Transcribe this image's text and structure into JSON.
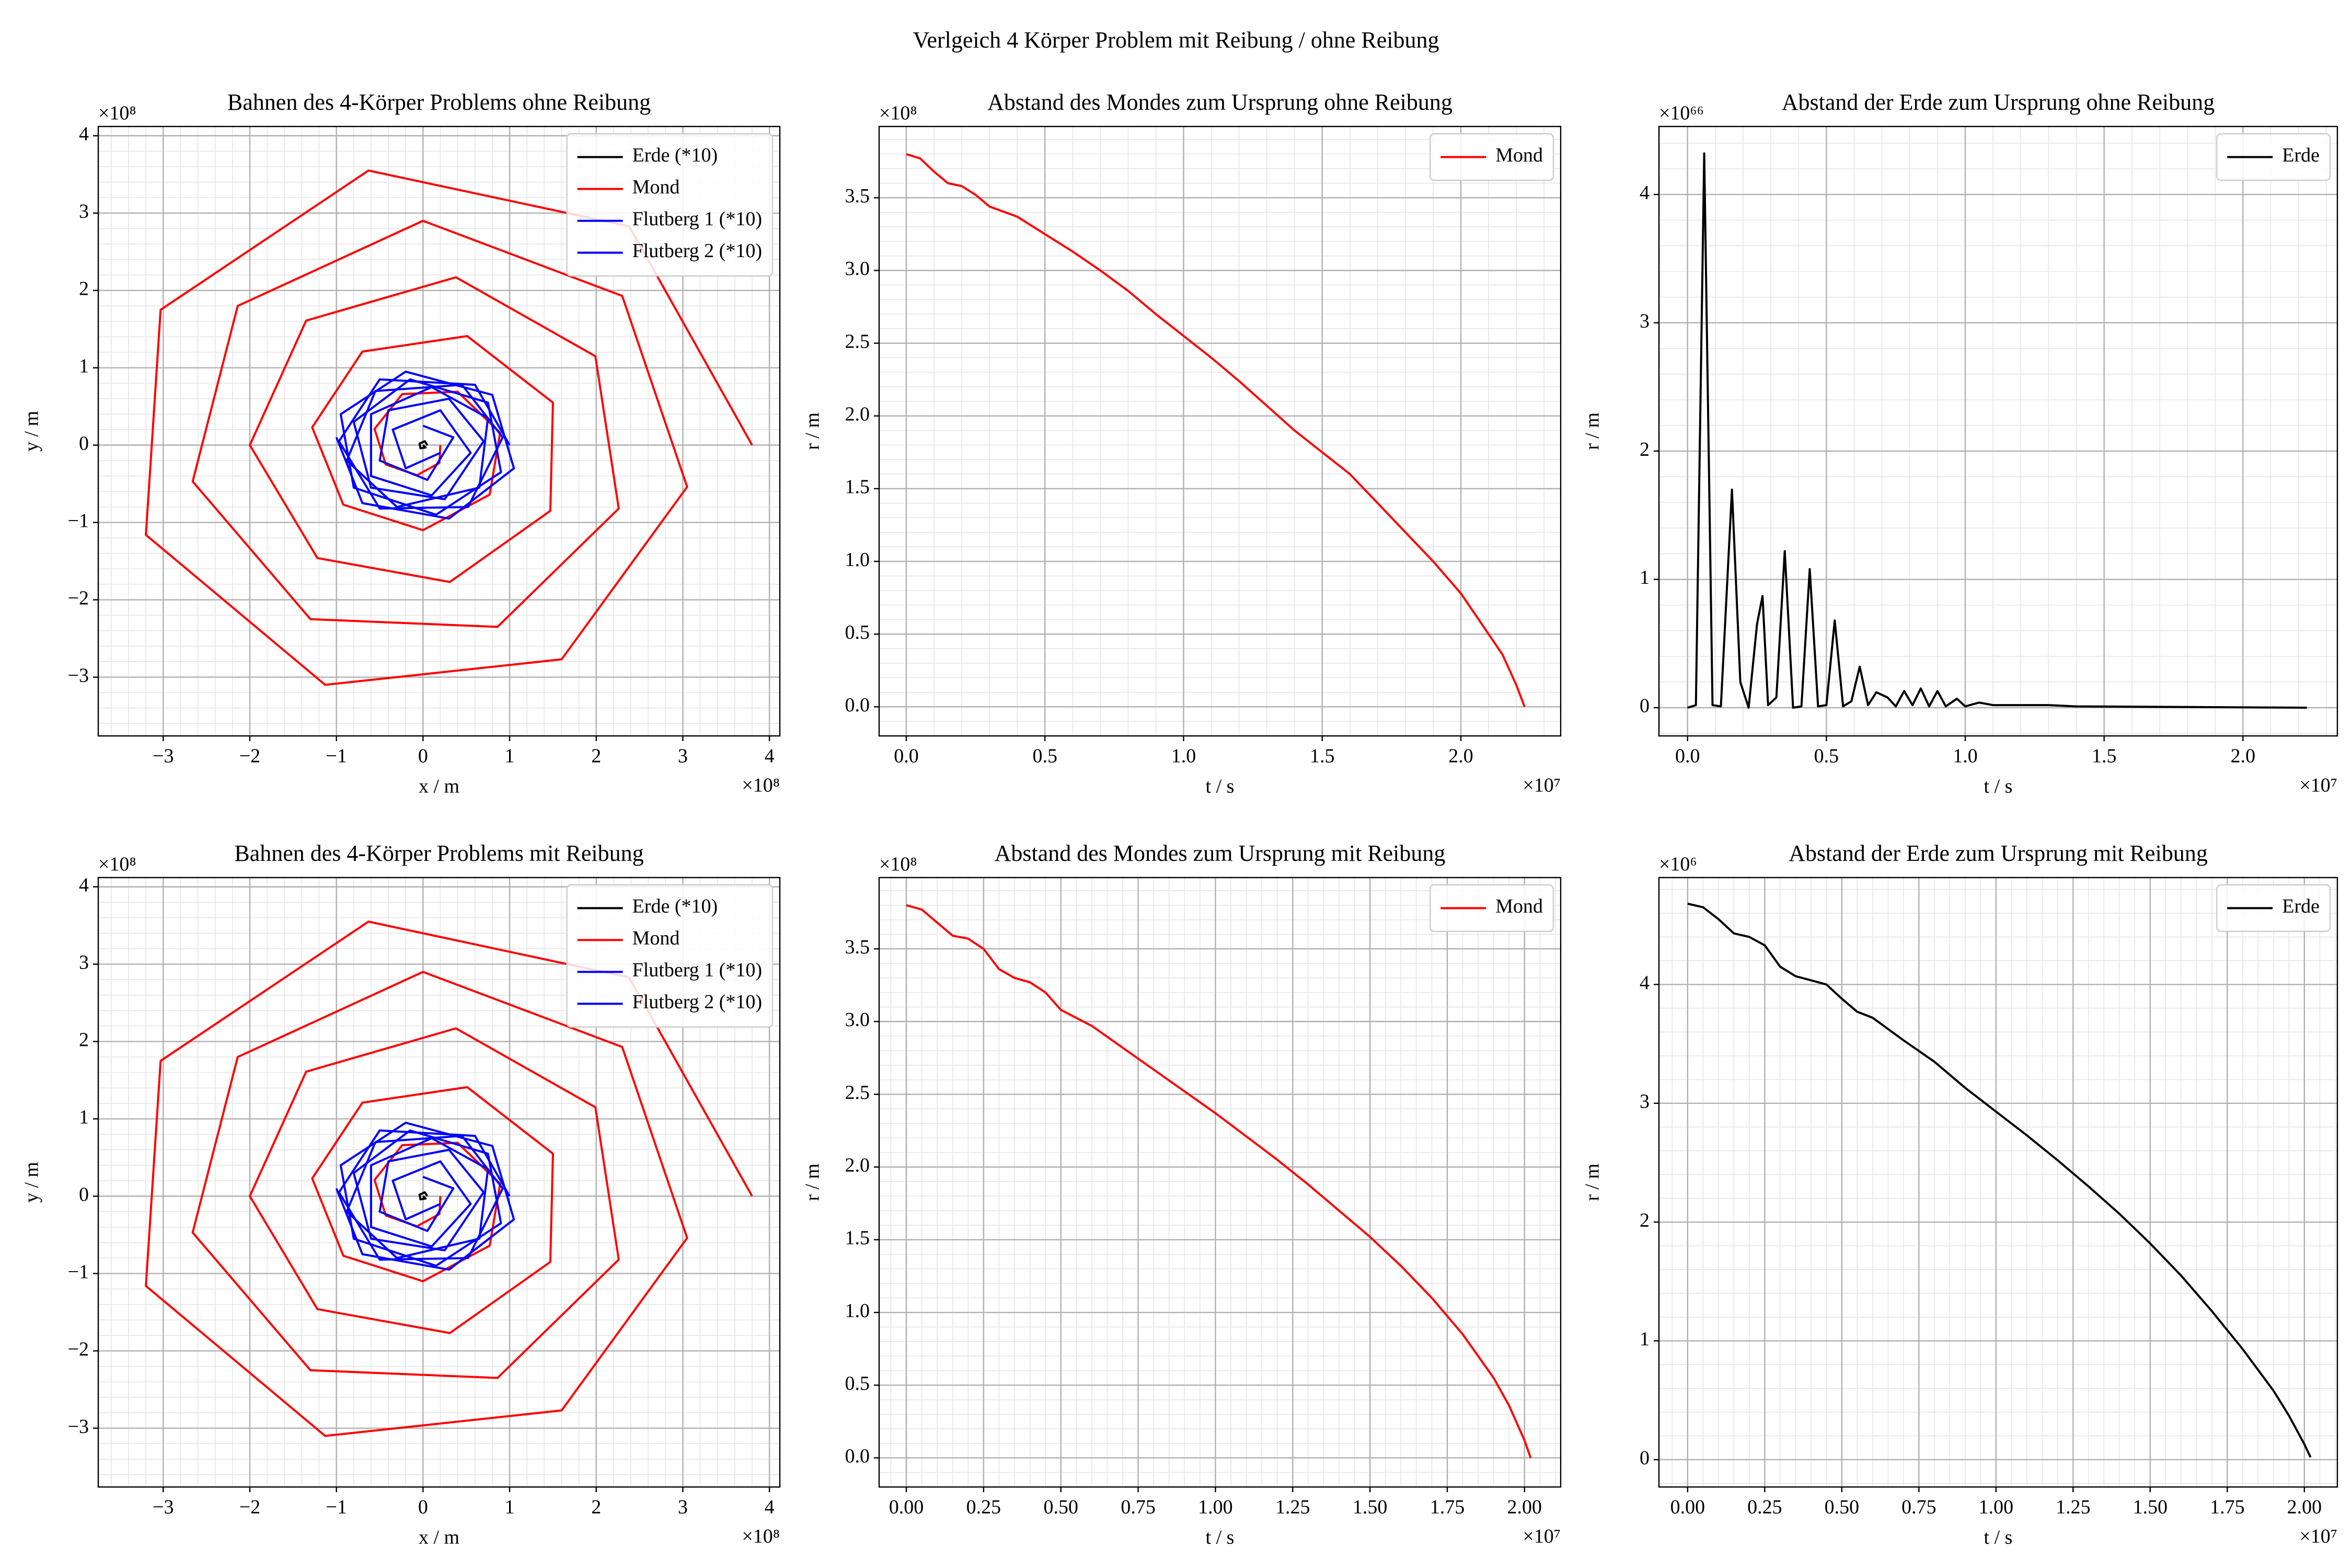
{
  "title": "Verlgeich 4 Körper Problem mit Reibung / ohne Reibung",
  "chart_data": [
    {
      "type": "line",
      "title": "Bahnen des 4-Körper Problems ohne Reibung",
      "xlabel": "x / m",
      "ylabel": "y / m",
      "x_offset": "×10⁸",
      "y_offset": "×10⁸",
      "xlim": [
        -3.75,
        4.12
      ],
      "ylim": [
        -3.76,
        4.12
      ],
      "xticks": [
        {
          "value": -3,
          "label": "−3"
        },
        {
          "value": -2,
          "label": "−2"
        },
        {
          "value": -1,
          "label": "−1"
        },
        0,
        1,
        2,
        3,
        4
      ],
      "yticks": [
        {
          "value": -3,
          "label": "−3"
        },
        {
          "value": -2,
          "label": "−2"
        },
        {
          "value": -1,
          "label": "−1"
        },
        0,
        1,
        2,
        3,
        4
      ],
      "grid": true,
      "minor_divisions": 5,
      "legend": "upper right",
      "series": [
        {
          "name": "Erde (*10)",
          "color": "#000000",
          "x": [
            0.05,
            0.02,
            -0.04,
            -0.03,
            0.03,
            0
          ],
          "values": [
            0,
            0.05,
            0.02,
            -0.04,
            -0.03,
            0
          ]
        },
        {
          "name": "Mond",
          "color": "#ff0000",
          "x": [
            3.8,
            2.38,
            -0.63,
            -3.03,
            -3.2,
            -1.13,
            1.6,
            3.05,
            2.3,
            0,
            -2.14,
            -2.66,
            -1.3,
            0.86,
            2.26,
            1.99,
            0.38,
            -1.35,
            -2,
            -1.22,
            0.31,
            1.47,
            1.5,
            0.51,
            -0.7,
            -1.28,
            -0.92,
            0,
            0.77,
            0.89,
            0.4,
            -0.24,
            -0.56,
            -0.43,
            -0.07,
            0.19,
            0.2
          ],
          "values": [
            0,
            2.83,
            3.55,
            1.75,
            -1.16,
            -3.1,
            -2.77,
            -0.54,
            1.93,
            2.9,
            1.8,
            -0.47,
            -2.25,
            -2.35,
            -0.82,
            1.15,
            2.17,
            1.61,
            0,
            -1.46,
            -1.77,
            -0.85,
            0.55,
            1.41,
            1.21,
            0.23,
            -0.77,
            -1.1,
            -0.64,
            0.16,
            0.69,
            0.66,
            0.21,
            -0.25,
            -0.39,
            -0.23,
            0
          ]
        },
        {
          "name": "Flutberg 1 (*10)",
          "color": "#0000ff",
          "x": [
            1.0,
            0.6,
            -0.5,
            -0.97,
            -0.5,
            0.52,
            0.92,
            0.45,
            -0.55,
            -0.88,
            -0.3,
            0.65,
            0.75,
            0.1,
            -0.6,
            -0.6,
            0.1,
            0.55,
            0.2,
            -0.35,
            -0.2,
            0.2
          ],
          "values": [
            0,
            0.78,
            0.85,
            0.05,
            -0.82,
            -0.8,
            0.1,
            0.78,
            0.7,
            -0.2,
            -0.8,
            -0.55,
            0.35,
            0.75,
            0.4,
            -0.4,
            -0.65,
            -0.1,
            0.45,
            0.2,
            -0.3,
            -0.1
          ]
        },
        {
          "name": "Flutberg 2 (*10)",
          "color": "#0000ff",
          "x": [
            -1.0,
            -0.7,
            0.3,
            1.05,
            0.8,
            -0.2,
            -0.95,
            -0.8,
            0.15,
            0.9,
            0.75,
            -0.15,
            -0.8,
            -0.6,
            0.25,
            0.7,
            0.3,
            -0.4,
            -0.5,
            0.05,
            0.35,
            0
          ],
          "values": [
            0.1,
            -0.75,
            -0.95,
            -0.3,
            0.65,
            0.95,
            0.4,
            -0.55,
            -0.9,
            -0.35,
            0.55,
            0.85,
            0.3,
            -0.55,
            -0.7,
            0.05,
            0.6,
            0.45,
            -0.2,
            -0.45,
            0.1,
            0.25
          ]
        }
      ]
    },
    {
      "type": "line",
      "title": "Abstand des Mondes zum Ursprung ohne Reibung",
      "xlabel": "t / s",
      "ylabel": "r / m",
      "x_offset": "×10⁷",
      "y_offset": "×10⁸",
      "xlim": [
        -0.098,
        2.36
      ],
      "ylim": [
        -0.2,
        3.99
      ],
      "xticks": [
        {
          "value": 0,
          "label": "0.0"
        },
        0.5,
        {
          "value": 1,
          "label": "1.0"
        },
        1.5,
        {
          "value": 2,
          "label": "2.0"
        }
      ],
      "yticks": [
        {
          "value": 0,
          "label": "0.0"
        },
        0.5,
        {
          "value": 1,
          "label": "1.0"
        },
        1.5,
        {
          "value": 2,
          "label": "2.0"
        },
        2.5,
        {
          "value": 3,
          "label": "3.0"
        },
        3.5
      ],
      "grid": true,
      "minor_divisions": 5,
      "legend": "upper right",
      "series": [
        {
          "name": "Mond",
          "color": "#ff0000",
          "x": [
            0,
            0.05,
            0.1,
            0.15,
            0.2,
            0.25,
            0.3,
            0.4,
            0.5,
            0.6,
            0.7,
            0.8,
            0.9,
            1.0,
            1.1,
            1.2,
            1.3,
            1.4,
            1.5,
            1.6,
            1.7,
            1.8,
            1.9,
            2.0,
            2.1,
            2.15,
            2.2,
            2.23
          ],
          "values": [
            3.8,
            3.77,
            3.68,
            3.6,
            3.58,
            3.52,
            3.44,
            3.37,
            3.25,
            3.13,
            3.0,
            2.86,
            2.7,
            2.55,
            2.4,
            2.24,
            2.07,
            1.9,
            1.75,
            1.6,
            1.4,
            1.2,
            1.0,
            0.78,
            0.5,
            0.36,
            0.15,
            0
          ]
        }
      ]
    },
    {
      "type": "line",
      "title": "Abstand der Erde zum Ursprung ohne Reibung",
      "xlabel": "t / s",
      "ylabel": "r / m",
      "x_offset": "×10⁷",
      "y_offset": "×10⁶⁶",
      "xlim": [
        -0.103,
        2.34
      ],
      "ylim": [
        -0.22,
        4.53
      ],
      "xticks": [
        {
          "value": 0,
          "label": "0.0"
        },
        0.5,
        {
          "value": 1,
          "label": "1.0"
        },
        1.5,
        {
          "value": 2,
          "label": "2.0"
        }
      ],
      "yticks": [
        0,
        1,
        2,
        3,
        4
      ],
      "grid": true,
      "minor_divisions": 5,
      "legend": "upper right",
      "series": [
        {
          "name": "Erde",
          "color": "#000000",
          "x": [
            0,
            0.03,
            0.06,
            0.09,
            0.12,
            0.16,
            0.19,
            0.22,
            0.25,
            0.27,
            0.29,
            0.32,
            0.35,
            0.38,
            0.41,
            0.44,
            0.47,
            0.5,
            0.53,
            0.56,
            0.59,
            0.62,
            0.65,
            0.68,
            0.72,
            0.75,
            0.78,
            0.81,
            0.84,
            0.87,
            0.9,
            0.93,
            0.97,
            1.0,
            1.05,
            1.1,
            1.2,
            1.3,
            1.4,
            2.23
          ],
          "values": [
            0,
            0.02,
            4.32,
            0.02,
            0.01,
            1.7,
            0.2,
            0,
            0.65,
            0.87,
            0.02,
            0.08,
            1.22,
            0,
            0.01,
            1.08,
            0.01,
            0.02,
            0.68,
            0.01,
            0.05,
            0.32,
            0.02,
            0.12,
            0.08,
            0.01,
            0.13,
            0.02,
            0.15,
            0.01,
            0.13,
            0.01,
            0.07,
            0.01,
            0.04,
            0.02,
            0.02,
            0.02,
            0.01,
            0
          ]
        }
      ]
    },
    {
      "type": "line",
      "title": "Bahnen des 4-Körper Problems mit Reibung",
      "xlabel": "x / m",
      "ylabel": "y / m",
      "x_offset": "×10⁸",
      "y_offset": "×10⁸",
      "xlim": [
        -3.75,
        4.12
      ],
      "ylim": [
        -3.76,
        4.12
      ],
      "xticks": [
        {
          "value": -3,
          "label": "−3"
        },
        {
          "value": -2,
          "label": "−2"
        },
        {
          "value": -1,
          "label": "−1"
        },
        0,
        1,
        2,
        3,
        4
      ],
      "yticks": [
        {
          "value": -3,
          "label": "−3"
        },
        {
          "value": -2,
          "label": "−2"
        },
        {
          "value": -1,
          "label": "−1"
        },
        0,
        1,
        2,
        3,
        4
      ],
      "grid": true,
      "minor_divisions": 5,
      "legend": "upper right",
      "series": [
        {
          "name": "Erde (*10)",
          "color": "#000000",
          "x": [
            0.05,
            0.02,
            -0.04,
            -0.03,
            0.03,
            0
          ],
          "values": [
            0,
            0.05,
            0.02,
            -0.04,
            -0.03,
            0
          ]
        },
        {
          "name": "Mond",
          "color": "#ff0000",
          "x": [
            3.8,
            2.38,
            -0.63,
            -3.03,
            -3.2,
            -1.13,
            1.6,
            3.05,
            2.3,
            0,
            -2.14,
            -2.66,
            -1.3,
            0.86,
            2.26,
            1.99,
            0.38,
            -1.35,
            -2,
            -1.22,
            0.31,
            1.47,
            1.5,
            0.51,
            -0.7,
            -1.28,
            -0.92,
            0,
            0.77,
            0.89,
            0.4,
            -0.24,
            -0.56,
            -0.43,
            -0.07,
            0.19,
            0.2
          ],
          "values": [
            0,
            2.83,
            3.55,
            1.75,
            -1.16,
            -3.1,
            -2.77,
            -0.54,
            1.93,
            2.9,
            1.8,
            -0.47,
            -2.25,
            -2.35,
            -0.82,
            1.15,
            2.17,
            1.61,
            0,
            -1.46,
            -1.77,
            -0.85,
            0.55,
            1.41,
            1.21,
            0.23,
            -0.77,
            -1.1,
            -0.64,
            0.16,
            0.69,
            0.66,
            0.21,
            -0.25,
            -0.39,
            -0.23,
            0
          ]
        },
        {
          "name": "Flutberg 1 (*10)",
          "color": "#0000ff",
          "x": [
            1.0,
            0.6,
            -0.5,
            -0.97,
            -0.5,
            0.52,
            0.92,
            0.45,
            -0.55,
            -0.88,
            -0.3,
            0.65,
            0.75,
            0.1,
            -0.6,
            -0.6,
            0.1,
            0.55,
            0.2,
            -0.35,
            -0.2,
            0.2
          ],
          "values": [
            0,
            0.78,
            0.85,
            0.05,
            -0.82,
            -0.8,
            0.1,
            0.78,
            0.7,
            -0.2,
            -0.8,
            -0.55,
            0.35,
            0.75,
            0.4,
            -0.4,
            -0.65,
            -0.1,
            0.45,
            0.2,
            -0.3,
            -0.1
          ]
        },
        {
          "name": "Flutberg 2 (*10)",
          "color": "#0000ff",
          "x": [
            -1.0,
            -0.7,
            0.3,
            1.05,
            0.8,
            -0.2,
            -0.95,
            -0.8,
            0.15,
            0.9,
            0.75,
            -0.15,
            -0.8,
            -0.6,
            0.25,
            0.7,
            0.3,
            -0.4,
            -0.5,
            0.05,
            0.35,
            0
          ],
          "values": [
            0.1,
            -0.75,
            -0.95,
            -0.3,
            0.65,
            0.95,
            0.4,
            -0.55,
            -0.9,
            -0.35,
            0.55,
            0.85,
            0.3,
            -0.55,
            -0.7,
            0.05,
            0.6,
            0.45,
            -0.2,
            -0.45,
            0.1,
            0.25
          ]
        }
      ]
    },
    {
      "type": "line",
      "title": "Abstand des Mondes zum Ursprung mit Reibung",
      "xlabel": "t / s",
      "ylabel": "r / m",
      "x_offset": "×10⁷",
      "y_offset": "×10⁸",
      "xlim": [
        -0.088,
        2.117
      ],
      "ylim": [
        -0.2,
        3.99
      ],
      "xticks": [
        {
          "value": 0,
          "label": "0.00"
        },
        0.25,
        {
          "value": 0.5,
          "label": "0.50"
        },
        0.75,
        {
          "value": 1,
          "label": "1.00"
        },
        1.25,
        {
          "value": 1.5,
          "label": "1.50"
        },
        1.75,
        {
          "value": 2,
          "label": "2.00"
        }
      ],
      "yticks": [
        {
          "value": 0,
          "label": "0.0"
        },
        0.5,
        {
          "value": 1,
          "label": "1.0"
        },
        1.5,
        {
          "value": 2,
          "label": "2.0"
        },
        2.5,
        {
          "value": 3,
          "label": "3.0"
        },
        3.5
      ],
      "grid": true,
      "minor_divisions": 5,
      "legend": "upper right",
      "series": [
        {
          "name": "Mond",
          "color": "#ff0000",
          "x": [
            0,
            0.05,
            0.1,
            0.15,
            0.2,
            0.25,
            0.3,
            0.35,
            0.4,
            0.45,
            0.5,
            0.6,
            0.7,
            0.8,
            0.9,
            1.0,
            1.1,
            1.2,
            1.3,
            1.4,
            1.5,
            1.6,
            1.7,
            1.8,
            1.9,
            1.95,
            2.0,
            2.02
          ],
          "values": [
            3.8,
            3.77,
            3.68,
            3.59,
            3.57,
            3.5,
            3.36,
            3.3,
            3.27,
            3.2,
            3.08,
            2.97,
            2.82,
            2.67,
            2.52,
            2.37,
            2.21,
            2.05,
            1.88,
            1.7,
            1.52,
            1.32,
            1.1,
            0.85,
            0.55,
            0.36,
            0.12,
            0
          ]
        }
      ]
    },
    {
      "type": "line",
      "title": "Abstand der Erde zum Ursprung mit Reibung",
      "xlabel": "t / s",
      "ylabel": "r / m",
      "x_offset": "×10⁷",
      "y_offset": "×10⁶",
      "xlim": [
        -0.093,
        2.107
      ],
      "ylim": [
        -0.23,
        4.9
      ],
      "xticks": [
        {
          "value": 0,
          "label": "0.00"
        },
        0.25,
        {
          "value": 0.5,
          "label": "0.50"
        },
        0.75,
        {
          "value": 1,
          "label": "1.00"
        },
        1.25,
        {
          "value": 1.5,
          "label": "1.50"
        },
        1.75,
        {
          "value": 2,
          "label": "2.00"
        }
      ],
      "yticks": [
        0,
        1,
        2,
        3,
        4
      ],
      "grid": true,
      "minor_divisions": 5,
      "legend": "upper right",
      "series": [
        {
          "name": "Erde",
          "color": "#000000",
          "x": [
            0,
            0.05,
            0.1,
            0.15,
            0.2,
            0.25,
            0.3,
            0.35,
            0.45,
            0.5,
            0.55,
            0.6,
            0.7,
            0.8,
            0.9,
            1.0,
            1.1,
            1.2,
            1.3,
            1.4,
            1.5,
            1.6,
            1.7,
            1.8,
            1.9,
            1.95,
            2.0,
            2.02
          ],
          "values": [
            4.68,
            4.65,
            4.55,
            4.43,
            4.4,
            4.33,
            4.15,
            4.07,
            4.0,
            3.88,
            3.77,
            3.72,
            3.53,
            3.35,
            3.13,
            2.93,
            2.73,
            2.52,
            2.3,
            2.07,
            1.82,
            1.55,
            1.25,
            0.93,
            0.58,
            0.37,
            0.13,
            0.02
          ]
        }
      ]
    }
  ]
}
